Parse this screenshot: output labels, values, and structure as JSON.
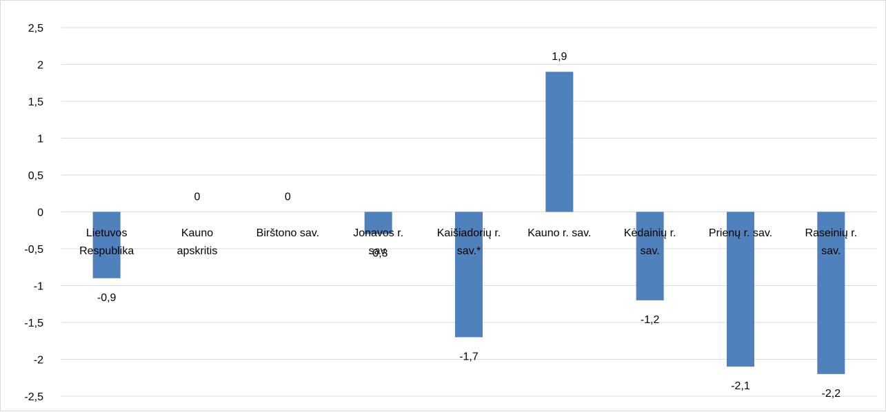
{
  "chart_data": {
    "type": "bar",
    "title": "",
    "xlabel": "",
    "ylabel": "",
    "ylim": [
      -2.5,
      2.5
    ],
    "yticks": [
      "-2,5",
      "-2",
      "-1,5",
      "-1",
      "-0,5",
      "0",
      "0,5",
      "1",
      "1,5",
      "2",
      "2,5"
    ],
    "grid": true,
    "legend": "none",
    "bar_color": "#4f81bd",
    "grid_color": "#d9d9d9",
    "categories": [
      [
        "Lietuvos",
        "Respublika"
      ],
      [
        "Kauno",
        "apskritis"
      ],
      [
        "Birštono sav."
      ],
      [
        "Jonavos r.",
        "sav."
      ],
      [
        "Kaišiadorių r.",
        "sav.*"
      ],
      [
        "Kauno r. sav."
      ],
      [
        "Kėdainių r.",
        "sav."
      ],
      [
        "Prienų r. sav."
      ],
      [
        "Raseinių r.",
        "sav."
      ]
    ],
    "values": [
      -0.9,
      0,
      0,
      -0.3,
      -1.7,
      1.9,
      -1.2,
      -2.1,
      -2.2
    ],
    "data_labels": [
      "-0,9",
      "0",
      "0",
      "-0,3",
      "-1,7",
      "1,9",
      "-1,2",
      "-2,1",
      "-2,2"
    ]
  }
}
